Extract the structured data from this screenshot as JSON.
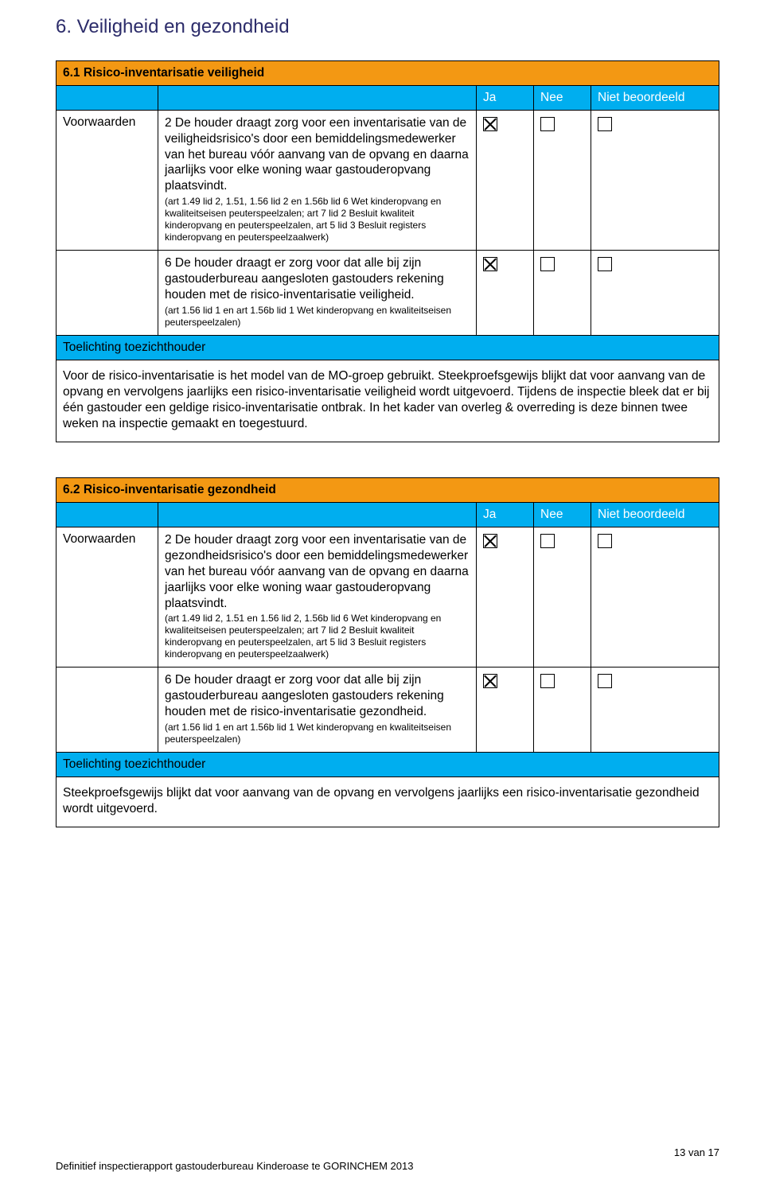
{
  "colors": {
    "orange": "#f39813",
    "cyan": "#00aeef",
    "heading": "#2c2c6a",
    "text": "#000000",
    "white": "#ffffff"
  },
  "heading": "6. Veiligheid en gezondheid",
  "headers": {
    "ja": "Ja",
    "nee": "Nee",
    "niet": "Niet beoordeeld"
  },
  "section1": {
    "title": "6.1 Risico-inventarisatie veiligheid",
    "label": "Voorwaarden",
    "rows": [
      {
        "body": "2 De houder draagt zorg voor een inventarisatie van de veiligheidsrisico's door een bemiddelingsmedewerker van het bureau vóór aanvang van de opvang en daarna jaarlijks voor elke woning waar gastouderopvang plaatsvindt.",
        "ref": "(art 1.49 lid 2, 1.51, 1.56 lid 2 en 1.56b lid 6 Wet kinderopvang en kwaliteitseisen peuterspeelzalen; art 7 lid 2 Besluit kwaliteit kinderopvang en peuterspeelzalen, art 5 lid 3 Besluit registers kinderopvang en peuterspeelzaalwerk)",
        "ja": true,
        "nee": false,
        "niet": false
      },
      {
        "body": "6 De houder draagt er zorg voor dat alle bij zijn gastouderbureau aangesloten gastouders rekening houden met de risico-inventarisatie veiligheid.",
        "ref": "(art 1.56 lid 1 en art 1.56b lid 1 Wet kinderopvang en kwaliteitseisen peuterspeelzalen)",
        "ja": true,
        "nee": false,
        "niet": false
      }
    ],
    "toelichting_label": "Toelichting toezichthouder",
    "toelichting_body": "Voor de risico-inventarisatie is het model van de MO-groep gebruikt. Steekproefsgewijs blijkt dat voor aanvang van de opvang en vervolgens jaarlijks een risico-inventarisatie veiligheid wordt uitgevoerd. Tijdens de inspectie bleek dat er bij één gastouder een geldige risico-inventarisatie ontbrak. In het kader van overleg & overreding is deze binnen twee weken na inspectie gemaakt en toegestuurd."
  },
  "section2": {
    "title": "6.2 Risico-inventarisatie gezondheid",
    "label": "Voorwaarden",
    "rows": [
      {
        "body": "2 De houder draagt zorg voor een inventarisatie van de gezondheidsrisico's door een bemiddelingsmedewerker van het bureau vóór aanvang van de opvang en daarna jaarlijks voor elke woning waar gastouderopvang plaatsvindt.",
        "ref": "(art 1.49 lid 2, 1.51 en 1.56 lid 2, 1.56b lid 6 Wet kinderopvang en kwaliteitseisen peuterspeelzalen; art 7 lid 2 Besluit kwaliteit kinderopvang en peuterspeelzalen, art 5 lid 3 Besluit registers kinderopvang en peuterspeelzaalwerk)",
        "ja": true,
        "nee": false,
        "niet": false
      },
      {
        "body": "6 De houder draagt er zorg voor dat alle bij zijn gastouderbureau aangesloten gastouders rekening houden met de risico-inventarisatie gezondheid.",
        "ref": "(art 1.56 lid 1 en art 1.56b lid 1 Wet kinderopvang en kwaliteitseisen peuterspeelzalen)",
        "ja": true,
        "nee": false,
        "niet": false
      }
    ],
    "toelichting_label": "Toelichting toezichthouder",
    "toelichting_body": "Steekproefsgewijs blijkt dat voor aanvang van de opvang en vervolgens jaarlijks een risico-inventarisatie gezondheid wordt uitgevoerd."
  },
  "footer": {
    "page": "13 van 17",
    "doc": "Definitief inspectierapport gastouderbureau Kinderoase te GORINCHEM 2013"
  }
}
